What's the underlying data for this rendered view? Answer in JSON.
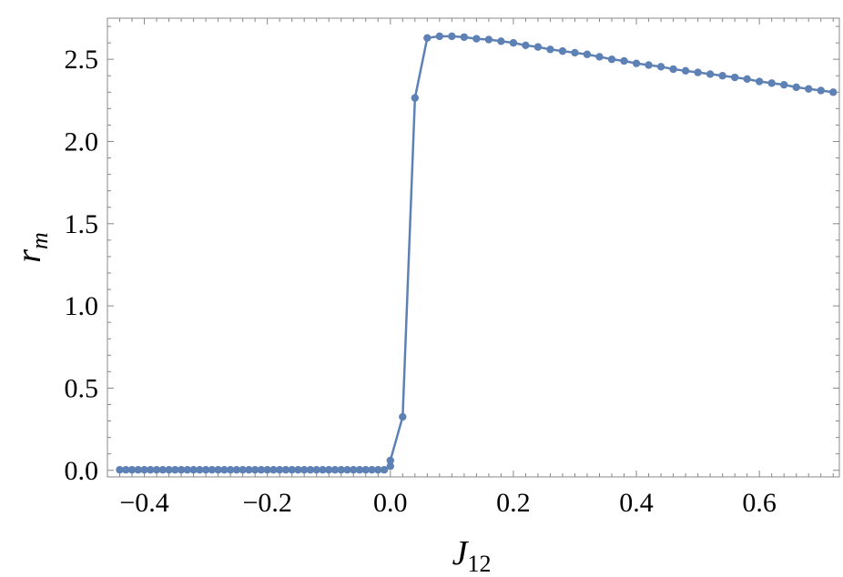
{
  "chart_data": {
    "type": "line",
    "xlabel": "J",
    "xlabel_sub": "12",
    "ylabel": "r",
    "ylabel_sub": "m",
    "xlim": [
      -0.46,
      0.73
    ],
    "ylim": [
      -0.04,
      2.75
    ],
    "xticks": [
      -0.4,
      -0.2,
      0.0,
      0.2,
      0.4,
      0.6
    ],
    "xtick_labels": [
      "−0.4",
      "−0.2",
      "0.0",
      "0.2",
      "0.4",
      "0.6"
    ],
    "yticks": [
      0.0,
      0.5,
      1.0,
      1.5,
      2.0,
      2.5
    ],
    "ytick_labels": [
      "0.0",
      "0.5",
      "1.0",
      "1.5",
      "2.0",
      "2.5"
    ],
    "grid": false,
    "frame": true,
    "markers": true,
    "color": "#5e81b5",
    "series": [
      {
        "x": [
          -0.44,
          -0.43,
          -0.42,
          -0.41,
          -0.4,
          -0.39,
          -0.38,
          -0.37,
          -0.36,
          -0.35,
          -0.34,
          -0.33,
          -0.32,
          -0.31,
          -0.3,
          -0.29,
          -0.28,
          -0.27,
          -0.26,
          -0.25,
          -0.24,
          -0.23,
          -0.22,
          -0.21,
          -0.2,
          -0.19,
          -0.18,
          -0.17,
          -0.16,
          -0.15,
          -0.14,
          -0.13,
          -0.12,
          -0.11,
          -0.1,
          -0.09,
          -0.08,
          -0.07,
          -0.06,
          -0.05,
          -0.04,
          -0.03,
          -0.02,
          -0.01,
          0.0,
          0.0,
          0.02,
          0.04,
          0.06,
          0.08,
          0.1,
          0.12,
          0.14,
          0.16,
          0.18,
          0.2,
          0.22,
          0.24,
          0.26,
          0.28,
          0.3,
          0.32,
          0.34,
          0.36,
          0.38,
          0.4,
          0.42,
          0.44,
          0.46,
          0.48,
          0.5,
          0.52,
          0.54,
          0.56,
          0.58,
          0.6,
          0.62,
          0.64,
          0.66,
          0.68,
          0.7,
          0.72
        ],
        "y": [
          0.003,
          0.003,
          0.003,
          0.003,
          0.003,
          0.003,
          0.003,
          0.003,
          0.003,
          0.003,
          0.003,
          0.003,
          0.003,
          0.003,
          0.003,
          0.003,
          0.003,
          0.003,
          0.003,
          0.003,
          0.003,
          0.003,
          0.003,
          0.003,
          0.003,
          0.003,
          0.003,
          0.003,
          0.003,
          0.003,
          0.003,
          0.003,
          0.003,
          0.003,
          0.003,
          0.003,
          0.003,
          0.003,
          0.003,
          0.003,
          0.003,
          0.003,
          0.003,
          0.003,
          0.025,
          0.06,
          0.325,
          2.265,
          2.63,
          2.64,
          2.64,
          2.635,
          2.625,
          2.62,
          2.61,
          2.6,
          2.585,
          2.575,
          2.56,
          2.55,
          2.54,
          2.53,
          2.515,
          2.5,
          2.49,
          2.475,
          2.465,
          2.455,
          2.44,
          2.43,
          2.42,
          2.41,
          2.4,
          2.39,
          2.38,
          2.365,
          2.355,
          2.345,
          2.33,
          2.32,
          2.31,
          2.3
        ]
      }
    ]
  }
}
